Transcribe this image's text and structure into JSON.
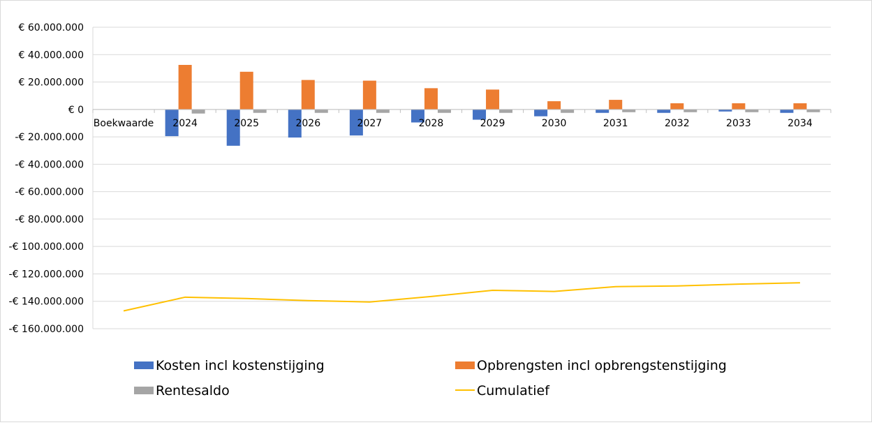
{
  "chart_data": {
    "type": "bar",
    "categories": [
      "Boekwaarde",
      "2024",
      "2025",
      "2026",
      "2027",
      "2028",
      "2029",
      "2030",
      "2031",
      "2032",
      "2033",
      "2034"
    ],
    "series": [
      {
        "name": "Kosten incl kostenstijging",
        "type": "bar",
        "color": "#4472c4",
        "values": [
          0,
          -19500000,
          -26500000,
          -20500000,
          -19000000,
          -9500000,
          -7500000,
          -5000000,
          -2500000,
          -2500000,
          -1500000,
          -2500000
        ]
      },
      {
        "name": "Opbrengsten incl opbrengstenstijging",
        "type": "bar",
        "color": "#ed7d31",
        "values": [
          0,
          32500000,
          27500000,
          21500000,
          21000000,
          15500000,
          14500000,
          6000000,
          7000000,
          4500000,
          4500000,
          4500000
        ]
      },
      {
        "name": "Rentesaldo",
        "type": "bar",
        "color": "#a5a5a5",
        "values": [
          0,
          -3000000,
          -2500000,
          -2500000,
          -2500000,
          -2500000,
          -2500000,
          -2500000,
          -2000000,
          -2000000,
          -2000000,
          -2000000
        ]
      },
      {
        "name": "Cumulatief",
        "type": "line",
        "color": "#ffc000",
        "values": [
          -147000000,
          -137000000,
          -138000000,
          -139500000,
          -140500000,
          -136500000,
          -132000000,
          -132800000,
          -129300000,
          -128800000,
          -127500000,
          -126500000
        ]
      }
    ],
    "y_ticks": [
      60000000,
      40000000,
      20000000,
      0,
      -20000000,
      -40000000,
      -60000000,
      -80000000,
      -100000000,
      -120000000,
      -140000000,
      -160000000
    ],
    "y_tick_labels": [
      "€ 60.000.000",
      "€ 40.000.000",
      "€ 20.000.000",
      "€ 0",
      "-€ 20.000.000",
      "-€ 40.000.000",
      "-€ 60.000.000",
      "-€ 80.000.000",
      "-€ 100.000.000",
      "-€ 120.000.000",
      "-€ 140.000.000",
      "-€ 160.000.000"
    ],
    "ylim": [
      -160000000,
      60000000
    ],
    "grid": true,
    "legend_position": "bottom",
    "title": "",
    "xlabel": "",
    "ylabel": ""
  }
}
